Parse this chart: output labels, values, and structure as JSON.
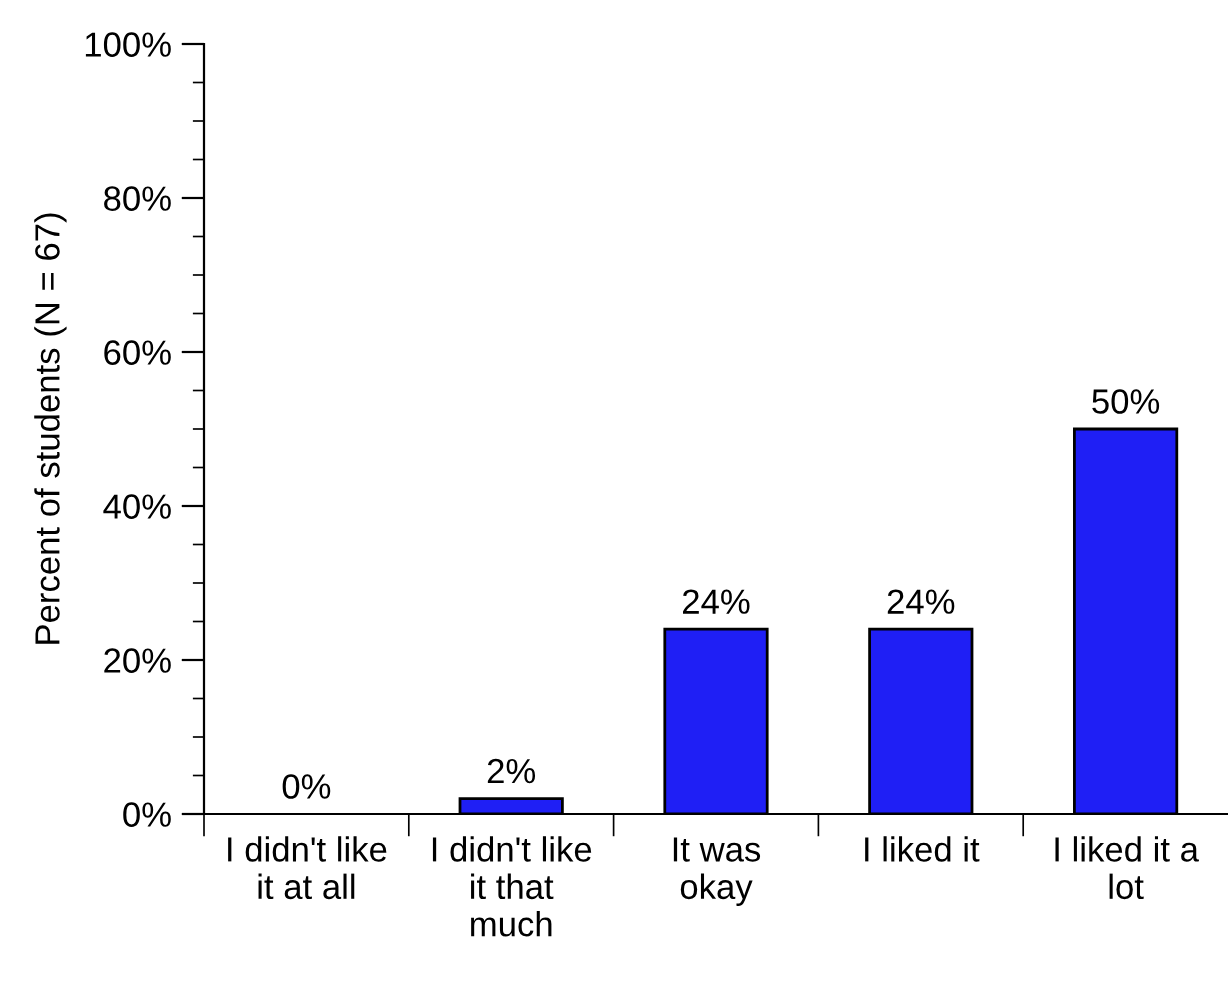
{
  "chart_data": {
    "type": "bar",
    "ylabel": "Percent of students (N = 67)",
    "categories": [
      "I didn't like\nit at all",
      "I didn't like\nit that\nmuch",
      "It was\nokay",
      "I liked it",
      "I liked it a\nlot"
    ],
    "values": [
      0,
      2,
      24,
      24,
      50
    ],
    "color": "#1f1ff5",
    "data_labels": true,
    "value_labels": [
      "0%",
      "2%",
      "24%",
      "24%",
      "50%"
    ],
    "ylim": [
      0,
      100
    ],
    "yticks": [
      {
        "value": 0,
        "label": "0%"
      },
      {
        "value": 5,
        "label": null
      },
      {
        "value": 10,
        "label": null
      },
      {
        "value": 15,
        "label": null
      },
      {
        "value": 20,
        "label": "20%"
      },
      {
        "value": 25,
        "label": null
      },
      {
        "value": 30,
        "label": null
      },
      {
        "value": 35,
        "label": null
      },
      {
        "value": 40,
        "label": "40%"
      },
      {
        "value": 45,
        "label": null
      },
      {
        "value": 50,
        "label": null
      },
      {
        "value": 55,
        "label": null
      },
      {
        "value": 60,
        "label": "60%"
      },
      {
        "value": 65,
        "label": null
      },
      {
        "value": 70,
        "label": null
      },
      {
        "value": 75,
        "label": null
      },
      {
        "value": 80,
        "label": "80%"
      },
      {
        "value": 85,
        "label": null
      },
      {
        "value": 90,
        "label": null
      },
      {
        "value": 95,
        "label": null
      },
      {
        "value": 100,
        "label": "100%"
      }
    ],
    "grid": false,
    "legend": false
  }
}
